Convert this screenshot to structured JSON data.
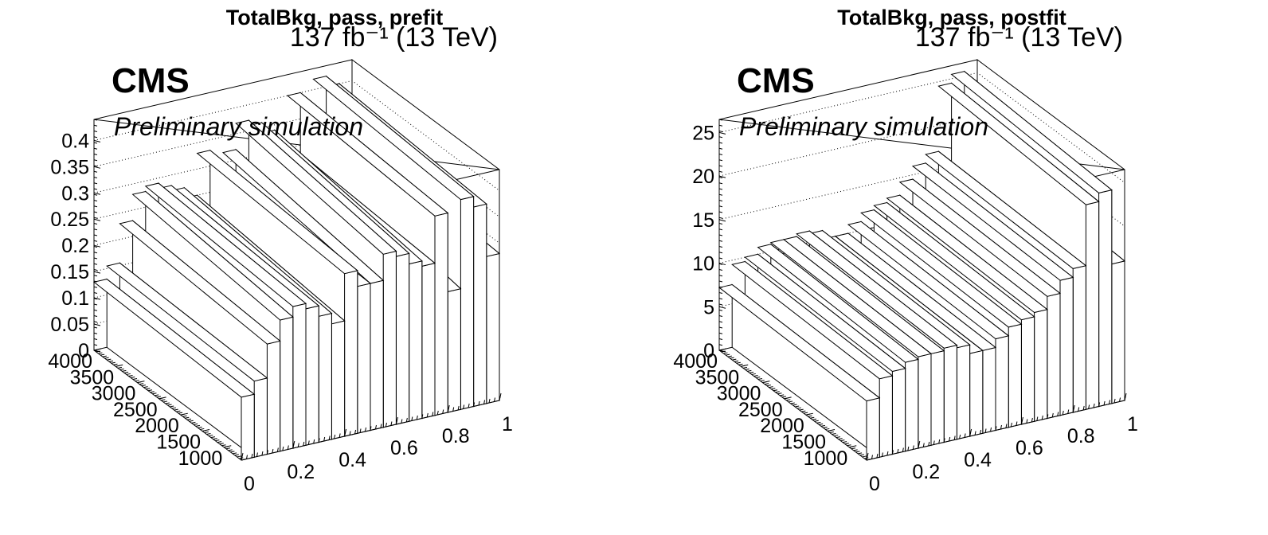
{
  "chart_data": [
    {
      "type": "bar3d",
      "title": "TotalBkg, pass, prefit",
      "lumi_label": "137 fb⁻¹ (13 TeV)",
      "experiment_label": "CMS",
      "status_label": "Preliminary simulation",
      "x_axis": {
        "range": [
          0,
          1
        ],
        "tick_labels": [
          "0",
          "0.2",
          "0.4",
          "0.6",
          "0.8",
          "1"
        ],
        "tick_values": [
          0,
          0.2,
          0.4,
          0.6,
          0.8,
          1
        ]
      },
      "y_axis": {
        "range": [
          600,
          4000
        ],
        "tick_labels": [
          "1000",
          "1500",
          "2000",
          "2500",
          "3000",
          "3500",
          "4000"
        ],
        "tick_values": [
          1000,
          1500,
          2000,
          2500,
          3000,
          3500,
          4000
        ]
      },
      "z_axis": {
        "range": [
          0,
          0.44
        ],
        "tick_labels": [
          "0",
          "0.05",
          "0.1",
          "0.15",
          "0.2",
          "0.25",
          "0.3",
          "0.35",
          "0.4"
        ],
        "tick_values": [
          0,
          0.05,
          0.1,
          0.15,
          0.2,
          0.25,
          0.3,
          0.35,
          0.4
        ]
      },
      "grid": true,
      "x_bin_edges": [
        0,
        0.05,
        0.1,
        0.15,
        0.2,
        0.25,
        0.3,
        0.35,
        0.4,
        0.45,
        0.5,
        0.55,
        0.6,
        0.65,
        0.7,
        0.75,
        0.8,
        0.85,
        0.9,
        0.95,
        1.0
      ],
      "ridge_values": [
        0.13,
        0.155,
        0.23,
        0.28,
        0.29,
        0.28,
        0.27,
        0.25,
        0.33,
        0.29,
        0.32,
        0.37,
        0.36,
        0.34,
        0.31,
        0.4,
        0.28,
        0.42,
        0.4,
        0.3
      ],
      "front_values": [
        0.12,
        0.145,
        0.21,
        0.25,
        0.27,
        0.26,
        0.24,
        0.22,
        0.31,
        0.28,
        0.28,
        0.33,
        0.32,
        0.3,
        0.29,
        0.38,
        0.23,
        0.4,
        0.38,
        0.28
      ]
    },
    {
      "type": "bar3d",
      "title": "TotalBkg, pass, postfit",
      "lumi_label": "137 fb⁻¹ (13 TeV)",
      "experiment_label": "CMS",
      "status_label": "Preliminary simulation",
      "x_axis": {
        "range": [
          0,
          1
        ],
        "tick_labels": [
          "0",
          "0.2",
          "0.4",
          "0.6",
          "0.8",
          "1"
        ],
        "tick_values": [
          0,
          0.2,
          0.4,
          0.6,
          0.8,
          1
        ]
      },
      "y_axis": {
        "range": [
          600,
          4000
        ],
        "tick_labels": [
          "1000",
          "1500",
          "2000",
          "2500",
          "3000",
          "3500",
          "4000"
        ],
        "tick_values": [
          1000,
          1500,
          2000,
          2500,
          3000,
          3500,
          4000
        ]
      },
      "z_axis": {
        "range": [
          0,
          26.5
        ],
        "tick_labels": [
          "0",
          "5",
          "10",
          "15",
          "20",
          "25"
        ],
        "tick_values": [
          0,
          5,
          10,
          15,
          20,
          25
        ]
      },
      "grid": true,
      "x_bin_edges": [
        0,
        0.05,
        0.1,
        0.15,
        0.2,
        0.25,
        0.3,
        0.35,
        0.4,
        0.45,
        0.5,
        0.55,
        0.6,
        0.65,
        0.7,
        0.75,
        0.8,
        0.85,
        0.9,
        0.95,
        1.0
      ],
      "ridge_values": [
        7.2,
        9.5,
        10.0,
        10.8,
        11.0,
        11.0,
        11.3,
        11.0,
        10.0,
        10.0,
        11.0,
        12.0,
        12.5,
        13.0,
        14.5,
        16.0,
        17.0,
        24.5,
        25.5,
        17.0
      ],
      "front_values": [
        6.8,
        9.0,
        9.5,
        10.2,
        10.5,
        10.5,
        10.8,
        10.5,
        9.5,
        9.5,
        10.5,
        11.5,
        12.0,
        12.5,
        14.0,
        15.5,
        16.5,
        23.5,
        24.5,
        16.0
      ]
    }
  ]
}
